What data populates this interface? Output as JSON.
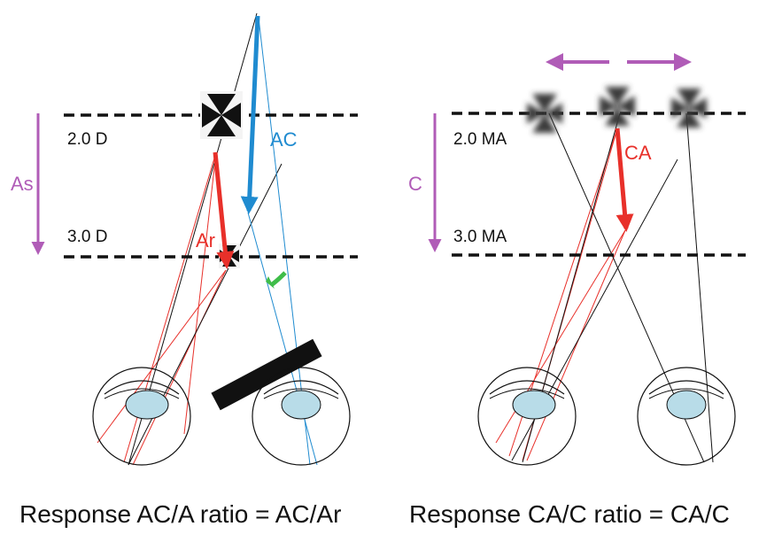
{
  "colors": {
    "purple": "#b05cb7",
    "blue": "#1f8bd0",
    "red": "#e8302a",
    "green": "#3fbd49",
    "black": "#111111",
    "lens": "#b8dce8"
  },
  "left_panel": {
    "near_label": "2.0 D",
    "far_label": "3.0 D",
    "side_arrow_label": "As",
    "blue_arrow_label": "AC",
    "red_arrow_label": "Ar",
    "caption": "Response AC/A ratio = AC/Ar"
  },
  "right_panel": {
    "near_label": "2.0 MA",
    "far_label": "3.0 MA",
    "side_arrow_label": "C",
    "red_arrow_label": "CA",
    "caption": "Response CA/C ratio = CA/C"
  }
}
